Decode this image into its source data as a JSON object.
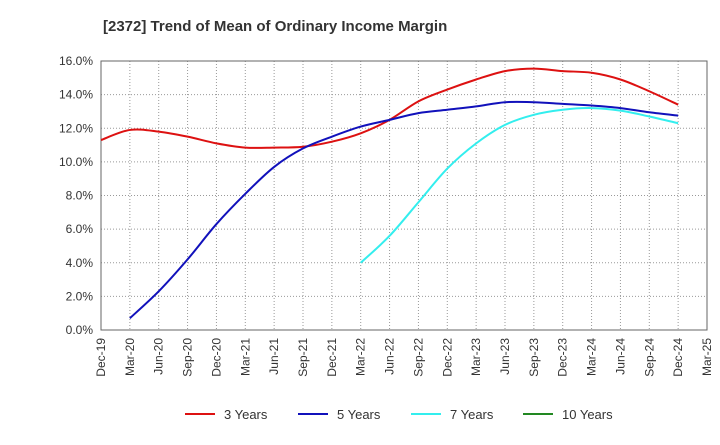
{
  "chart_data": {
    "type": "line",
    "title": "[2372]  Trend of Mean of Ordinary Income Margin",
    "xlabel": "",
    "ylabel": "",
    "ylim": [
      0,
      16
    ],
    "y_ticks": [
      0,
      2,
      4,
      6,
      8,
      10,
      12,
      14,
      16
    ],
    "y_tick_labels": [
      "0.0%",
      "2.0%",
      "4.0%",
      "6.0%",
      "8.0%",
      "10.0%",
      "12.0%",
      "14.0%",
      "16.0%"
    ],
    "x_tick_labels": [
      "Dec-19",
      "Mar-20",
      "Jun-20",
      "Sep-20",
      "Dec-20",
      "Mar-21",
      "Jun-21",
      "Sep-21",
      "Dec-21",
      "Mar-22",
      "Jun-22",
      "Sep-22",
      "Dec-22",
      "Mar-23",
      "Jun-23",
      "Sep-23",
      "Dec-23",
      "Mar-24",
      "Jun-24",
      "Sep-24",
      "Dec-24",
      "Mar-25"
    ],
    "grid": true,
    "legend_position": "bottom",
    "series": [
      {
        "name": "3 Years",
        "color": "#dd1111",
        "x": [
          "Dec-19",
          "Mar-20",
          "Jun-20",
          "Sep-20",
          "Dec-20",
          "Mar-21",
          "Jun-21",
          "Sep-21",
          "Dec-21",
          "Mar-22",
          "Jun-22",
          "Sep-22",
          "Dec-22",
          "Mar-23",
          "Jun-23",
          "Sep-23",
          "Dec-23",
          "Mar-24",
          "Jun-24",
          "Sep-24",
          "Dec-24"
        ],
        "values": [
          11.3,
          11.9,
          11.8,
          11.5,
          11.1,
          10.85,
          10.85,
          10.9,
          11.2,
          11.7,
          12.5,
          13.6,
          14.3,
          14.9,
          15.4,
          15.55,
          15.4,
          15.3,
          14.9,
          14.2,
          13.4
        ]
      },
      {
        "name": "5 Years",
        "color": "#1111bb",
        "x": [
          "Mar-20",
          "Jun-20",
          "Sep-20",
          "Dec-20",
          "Mar-21",
          "Jun-21",
          "Sep-21",
          "Dec-21",
          "Mar-22",
          "Jun-22",
          "Sep-22",
          "Dec-22",
          "Mar-23",
          "Jun-23",
          "Sep-23",
          "Dec-23",
          "Mar-24",
          "Jun-24",
          "Sep-24",
          "Dec-24"
        ],
        "values": [
          0.7,
          2.3,
          4.2,
          6.3,
          8.1,
          9.7,
          10.8,
          11.5,
          12.1,
          12.5,
          12.9,
          13.1,
          13.3,
          13.55,
          13.55,
          13.45,
          13.35,
          13.2,
          12.95,
          12.75
        ]
      },
      {
        "name": "7 Years",
        "color": "#33eeee",
        "x": [
          "Mar-22",
          "Jun-22",
          "Sep-22",
          "Dec-22",
          "Mar-23",
          "Jun-23",
          "Sep-23",
          "Dec-23",
          "Mar-24",
          "Jun-24",
          "Sep-24",
          "Dec-24"
        ],
        "values": [
          4.0,
          5.6,
          7.6,
          9.6,
          11.1,
          12.2,
          12.8,
          13.1,
          13.2,
          13.05,
          12.7,
          12.3
        ]
      },
      {
        "name": "10 Years",
        "color": "#228822",
        "x": [],
        "values": []
      }
    ]
  }
}
